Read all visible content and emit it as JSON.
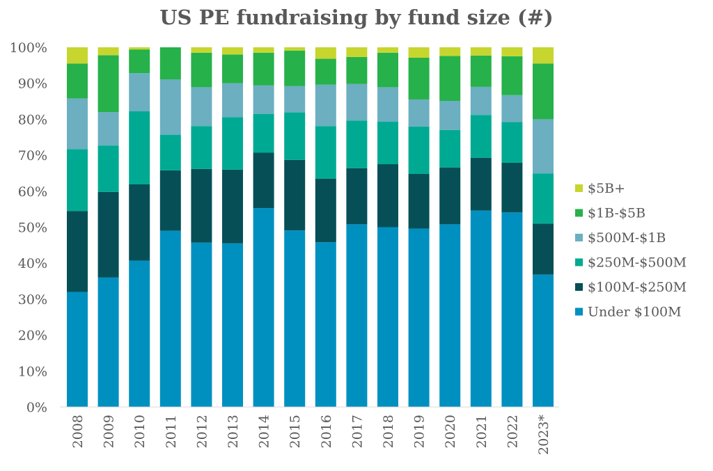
{
  "chart_data": {
    "type": "bar",
    "stacked": true,
    "title": "US PE fundraising by fund size (#)",
    "categories": [
      "2008",
      "2009",
      "2010",
      "2011",
      "2012",
      "2013",
      "2014",
      "2015",
      "2016",
      "2017",
      "2018",
      "2019",
      "2020",
      "2021",
      "2022",
      "2023*"
    ],
    "ylim": [
      0,
      100
    ],
    "yticks": [
      "0%",
      "10%",
      "20%",
      "30%",
      "40%",
      "50%",
      "60%",
      "70%",
      "80%",
      "90%",
      "100%"
    ],
    "grid": false,
    "legend_position": "right",
    "series": [
      {
        "name": "Under $100M",
        "color": "#0090C0",
        "values": [
          32,
          36,
          40.7,
          49,
          45.7,
          45.5,
          55.3,
          49.1,
          45.8,
          50.8,
          50,
          49.6,
          50.8,
          54.6,
          54.1,
          36.8
        ]
      },
      {
        "name": "$100M-$250M",
        "color": "#064F57",
        "values": [
          22.5,
          23.8,
          21.2,
          16.8,
          20.5,
          20.5,
          15.4,
          19.6,
          17.7,
          15.6,
          17.5,
          15.2,
          15.8,
          14.7,
          13.8,
          14.2
        ]
      },
      {
        "name": "$250M-$500M",
        "color": "#00AA92",
        "values": [
          17.2,
          12.9,
          20.3,
          9.9,
          11.9,
          14.6,
          10.8,
          13.2,
          14.6,
          13.2,
          11.8,
          13.2,
          10.4,
          11.9,
          11.3,
          13.9
        ]
      },
      {
        "name": "$500M-$1B",
        "color": "#6BAFC1",
        "values": [
          14.1,
          9.3,
          10.6,
          15.4,
          10.8,
          9.4,
          7.9,
          7.3,
          11.5,
          10.2,
          9.6,
          7.5,
          8.1,
          7.8,
          7.5,
          15.1
        ]
      },
      {
        "name": "$1B-$5B",
        "color": "#26B14A",
        "values": [
          9.7,
          15.8,
          6.6,
          8.9,
          9.6,
          8,
          9.1,
          9.9,
          7.2,
          7.5,
          9.6,
          11.6,
          12.5,
          8.7,
          10.8,
          15.5
        ]
      },
      {
        "name": "$5B+",
        "color": "#C6D62F",
        "values": [
          4.5,
          2.2,
          0.6,
          0,
          1.5,
          2,
          1.5,
          0.9,
          3.2,
          2.7,
          1.5,
          2.9,
          2.4,
          2.3,
          2.5,
          4.5
        ]
      }
    ]
  }
}
